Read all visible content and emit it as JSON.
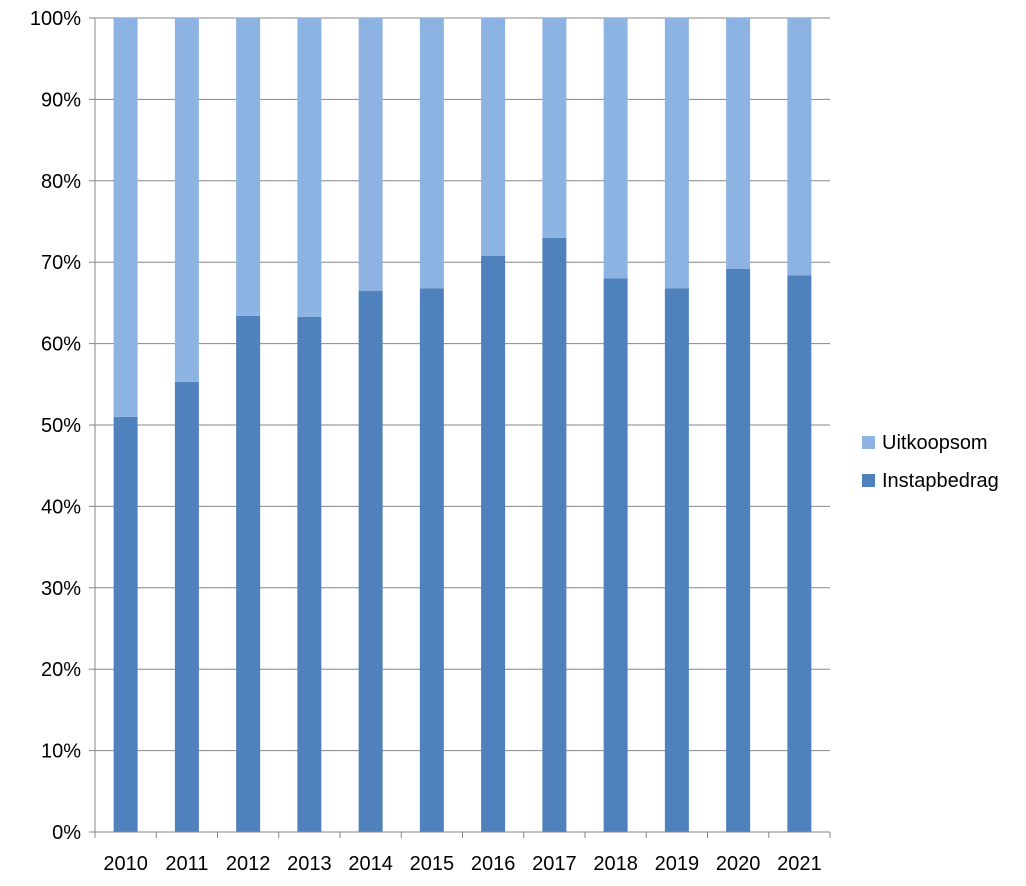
{
  "chart_data": {
    "type": "bar",
    "stacked": true,
    "percent_stacked": true,
    "title": "",
    "xlabel": "",
    "ylabel": "",
    "categories": [
      "2010",
      "2011",
      "2012",
      "2013",
      "2014",
      "2015",
      "2016",
      "2017",
      "2018",
      "2019",
      "2020",
      "2021"
    ],
    "series": [
      {
        "name": "Instapbedrag",
        "color": "#4f81bd",
        "values": [
          51,
          55.3,
          63.4,
          63.3,
          66.5,
          66.8,
          70.8,
          73,
          68,
          66.8,
          69.2,
          68.4
        ]
      },
      {
        "name": "Uitkoopsom",
        "color": "#8db3e2",
        "values": [
          49,
          44.7,
          36.6,
          36.7,
          33.5,
          33.2,
          29.2,
          27,
          32,
          33.2,
          30.8,
          31.6
        ]
      }
    ],
    "ylim": [
      0,
      100
    ],
    "y_ticks": [
      "0%",
      "10%",
      "20%",
      "30%",
      "40%",
      "50%",
      "60%",
      "70%",
      "80%",
      "90%",
      "100%"
    ],
    "grid": true,
    "legend": {
      "position": "right",
      "entries": [
        "Uitkoopsom",
        "Instapbedrag"
      ]
    }
  }
}
